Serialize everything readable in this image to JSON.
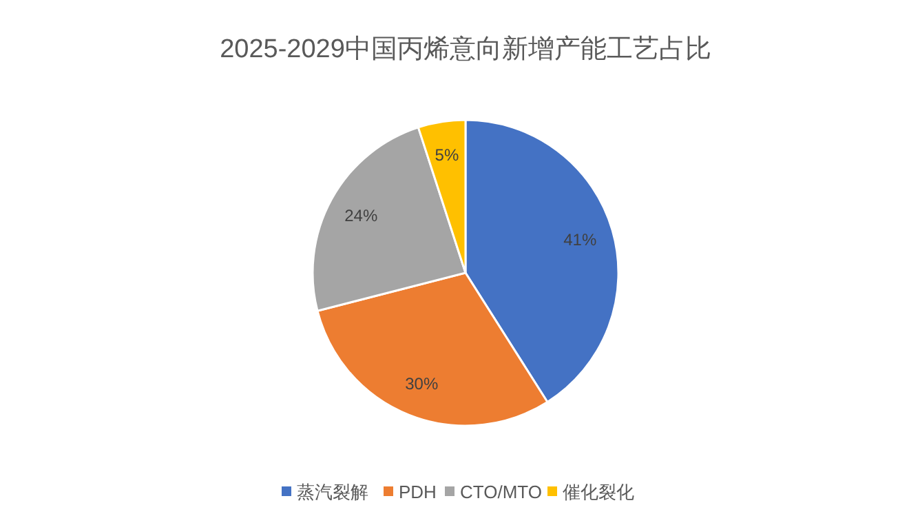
{
  "chart_data": {
    "type": "pie",
    "title": "2025-2029中国丙烯意向新增产能工艺占比",
    "categories": [
      "蒸汽裂解",
      "PDH",
      "CTO/MTO",
      "催化裂化"
    ],
    "values": [
      41,
      30,
      24,
      5
    ],
    "colors": [
      "#4472c4",
      "#ed7d31",
      "#a5a5a5",
      "#ffc000"
    ],
    "value_labels": [
      "41%",
      "30%",
      "24%",
      "5%"
    ],
    "legend": "bottom"
  }
}
